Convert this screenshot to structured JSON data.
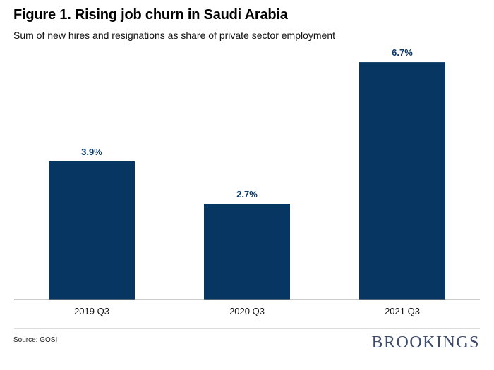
{
  "title": "Figure 1. Rising job churn in Saudi Arabia",
  "subtitle": "Sum of new hires and resignations as share of private sector employment",
  "source": "Source: GOSI",
  "brand": "BROOKINGS",
  "colors": {
    "bar": "#083663",
    "label": "#0a3a6b",
    "axis": "#999999",
    "brand": "#3d4b6e"
  },
  "chart_data": {
    "type": "bar",
    "title": "Figure 1. Rising job churn in Saudi Arabia",
    "subtitle": "Sum of new hires and resignations as share of private sector employment",
    "xlabel": "",
    "ylabel": "",
    "categories": [
      "2019 Q3",
      "2020 Q3",
      "2021 Q3"
    ],
    "values": [
      3.9,
      2.7,
      6.7
    ],
    "value_labels": [
      "3.9%",
      "2.7%",
      "6.7%"
    ],
    "unit": "%",
    "ylim": [
      0,
      7.1
    ],
    "grid": false,
    "legend": "none"
  }
}
